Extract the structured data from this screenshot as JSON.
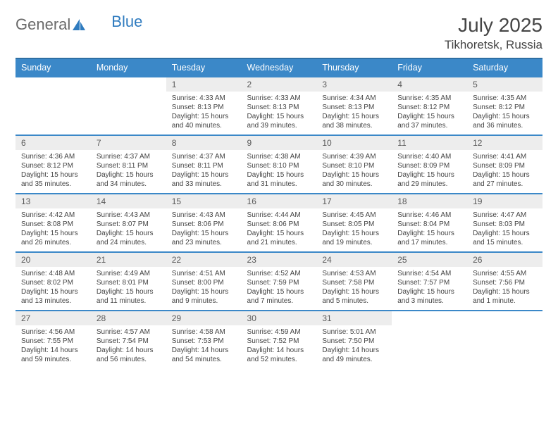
{
  "brand": {
    "part1": "General",
    "part2": "Blue"
  },
  "title": "July 2025",
  "location": "Tikhoretsk, Russia",
  "colors": {
    "header_bg": "#3b88c8",
    "header_border_top": "#2f6fa3",
    "daynum_bg": "#ededed",
    "row_border": "#3b88c8",
    "text_dark": "#454545",
    "text_muted": "#5a5a5a",
    "brand_gray": "#6a6a6a",
    "brand_blue": "#2f7bbf",
    "page_bg": "#ffffff"
  },
  "weekdays": [
    "Sunday",
    "Monday",
    "Tuesday",
    "Wednesday",
    "Thursday",
    "Friday",
    "Saturday"
  ],
  "weeks": [
    {
      "days": [
        {
          "n": "",
          "sunrise": "",
          "sunset": "",
          "daylight": ""
        },
        {
          "n": "",
          "sunrise": "",
          "sunset": "",
          "daylight": ""
        },
        {
          "n": "1",
          "sunrise": "Sunrise: 4:33 AM",
          "sunset": "Sunset: 8:13 PM",
          "daylight": "Daylight: 15 hours and 40 minutes."
        },
        {
          "n": "2",
          "sunrise": "Sunrise: 4:33 AM",
          "sunset": "Sunset: 8:13 PM",
          "daylight": "Daylight: 15 hours and 39 minutes."
        },
        {
          "n": "3",
          "sunrise": "Sunrise: 4:34 AM",
          "sunset": "Sunset: 8:13 PM",
          "daylight": "Daylight: 15 hours and 38 minutes."
        },
        {
          "n": "4",
          "sunrise": "Sunrise: 4:35 AM",
          "sunset": "Sunset: 8:12 PM",
          "daylight": "Daylight: 15 hours and 37 minutes."
        },
        {
          "n": "5",
          "sunrise": "Sunrise: 4:35 AM",
          "sunset": "Sunset: 8:12 PM",
          "daylight": "Daylight: 15 hours and 36 minutes."
        }
      ]
    },
    {
      "days": [
        {
          "n": "6",
          "sunrise": "Sunrise: 4:36 AM",
          "sunset": "Sunset: 8:12 PM",
          "daylight": "Daylight: 15 hours and 35 minutes."
        },
        {
          "n": "7",
          "sunrise": "Sunrise: 4:37 AM",
          "sunset": "Sunset: 8:11 PM",
          "daylight": "Daylight: 15 hours and 34 minutes."
        },
        {
          "n": "8",
          "sunrise": "Sunrise: 4:37 AM",
          "sunset": "Sunset: 8:11 PM",
          "daylight": "Daylight: 15 hours and 33 minutes."
        },
        {
          "n": "9",
          "sunrise": "Sunrise: 4:38 AM",
          "sunset": "Sunset: 8:10 PM",
          "daylight": "Daylight: 15 hours and 31 minutes."
        },
        {
          "n": "10",
          "sunrise": "Sunrise: 4:39 AM",
          "sunset": "Sunset: 8:10 PM",
          "daylight": "Daylight: 15 hours and 30 minutes."
        },
        {
          "n": "11",
          "sunrise": "Sunrise: 4:40 AM",
          "sunset": "Sunset: 8:09 PM",
          "daylight": "Daylight: 15 hours and 29 minutes."
        },
        {
          "n": "12",
          "sunrise": "Sunrise: 4:41 AM",
          "sunset": "Sunset: 8:09 PM",
          "daylight": "Daylight: 15 hours and 27 minutes."
        }
      ]
    },
    {
      "days": [
        {
          "n": "13",
          "sunrise": "Sunrise: 4:42 AM",
          "sunset": "Sunset: 8:08 PM",
          "daylight": "Daylight: 15 hours and 26 minutes."
        },
        {
          "n": "14",
          "sunrise": "Sunrise: 4:43 AM",
          "sunset": "Sunset: 8:07 PM",
          "daylight": "Daylight: 15 hours and 24 minutes."
        },
        {
          "n": "15",
          "sunrise": "Sunrise: 4:43 AM",
          "sunset": "Sunset: 8:06 PM",
          "daylight": "Daylight: 15 hours and 23 minutes."
        },
        {
          "n": "16",
          "sunrise": "Sunrise: 4:44 AM",
          "sunset": "Sunset: 8:06 PM",
          "daylight": "Daylight: 15 hours and 21 minutes."
        },
        {
          "n": "17",
          "sunrise": "Sunrise: 4:45 AM",
          "sunset": "Sunset: 8:05 PM",
          "daylight": "Daylight: 15 hours and 19 minutes."
        },
        {
          "n": "18",
          "sunrise": "Sunrise: 4:46 AM",
          "sunset": "Sunset: 8:04 PM",
          "daylight": "Daylight: 15 hours and 17 minutes."
        },
        {
          "n": "19",
          "sunrise": "Sunrise: 4:47 AM",
          "sunset": "Sunset: 8:03 PM",
          "daylight": "Daylight: 15 hours and 15 minutes."
        }
      ]
    },
    {
      "days": [
        {
          "n": "20",
          "sunrise": "Sunrise: 4:48 AM",
          "sunset": "Sunset: 8:02 PM",
          "daylight": "Daylight: 15 hours and 13 minutes."
        },
        {
          "n": "21",
          "sunrise": "Sunrise: 4:49 AM",
          "sunset": "Sunset: 8:01 PM",
          "daylight": "Daylight: 15 hours and 11 minutes."
        },
        {
          "n": "22",
          "sunrise": "Sunrise: 4:51 AM",
          "sunset": "Sunset: 8:00 PM",
          "daylight": "Daylight: 15 hours and 9 minutes."
        },
        {
          "n": "23",
          "sunrise": "Sunrise: 4:52 AM",
          "sunset": "Sunset: 7:59 PM",
          "daylight": "Daylight: 15 hours and 7 minutes."
        },
        {
          "n": "24",
          "sunrise": "Sunrise: 4:53 AM",
          "sunset": "Sunset: 7:58 PM",
          "daylight": "Daylight: 15 hours and 5 minutes."
        },
        {
          "n": "25",
          "sunrise": "Sunrise: 4:54 AM",
          "sunset": "Sunset: 7:57 PM",
          "daylight": "Daylight: 15 hours and 3 minutes."
        },
        {
          "n": "26",
          "sunrise": "Sunrise: 4:55 AM",
          "sunset": "Sunset: 7:56 PM",
          "daylight": "Daylight: 15 hours and 1 minute."
        }
      ]
    },
    {
      "days": [
        {
          "n": "27",
          "sunrise": "Sunrise: 4:56 AM",
          "sunset": "Sunset: 7:55 PM",
          "daylight": "Daylight: 14 hours and 59 minutes."
        },
        {
          "n": "28",
          "sunrise": "Sunrise: 4:57 AM",
          "sunset": "Sunset: 7:54 PM",
          "daylight": "Daylight: 14 hours and 56 minutes."
        },
        {
          "n": "29",
          "sunrise": "Sunrise: 4:58 AM",
          "sunset": "Sunset: 7:53 PM",
          "daylight": "Daylight: 14 hours and 54 minutes."
        },
        {
          "n": "30",
          "sunrise": "Sunrise: 4:59 AM",
          "sunset": "Sunset: 7:52 PM",
          "daylight": "Daylight: 14 hours and 52 minutes."
        },
        {
          "n": "31",
          "sunrise": "Sunrise: 5:01 AM",
          "sunset": "Sunset: 7:50 PM",
          "daylight": "Daylight: 14 hours and 49 minutes."
        },
        {
          "n": "",
          "sunrise": "",
          "sunset": "",
          "daylight": ""
        },
        {
          "n": "",
          "sunrise": "",
          "sunset": "",
          "daylight": ""
        }
      ]
    }
  ]
}
